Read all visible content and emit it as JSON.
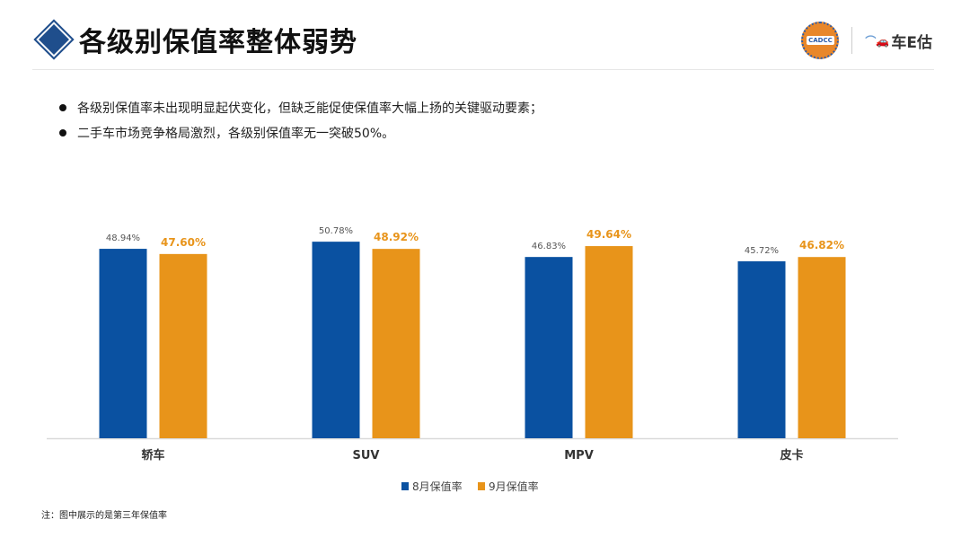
{
  "header": {
    "title": "各级别保值率整体弱势",
    "logo_left": "CADCC",
    "logo_right": "车E估"
  },
  "bullets": [
    "各级别保值率未出现明显起伏变化，但缺乏能促使保值率大幅上扬的关键驱动要素；",
    "二手车市场竞争格局激烈，各级别保值率无一突破50%。"
  ],
  "note": "注：图中展示的是第三年保值率",
  "chart_data": {
    "type": "bar",
    "categories": [
      "轿车",
      "SUV",
      "MPV",
      "皮卡"
    ],
    "series": [
      {
        "name": "8月保值率",
        "values": [
          48.94,
          50.78,
          46.83,
          45.72
        ],
        "labels": [
          "48.94%",
          "50.78%",
          "46.83%",
          "45.72%"
        ],
        "color": "#0a51a1"
      },
      {
        "name": "9月保值率",
        "values": [
          47.6,
          48.92,
          49.64,
          46.82
        ],
        "labels": [
          "47.60%",
          "48.92%",
          "49.64%",
          "46.82%"
        ],
        "color": "#e8941a"
      }
    ],
    "ylim": [
      0,
      60
    ],
    "grid": false,
    "legend": "bottom",
    "title": "",
    "xlabel": "",
    "ylabel": ""
  }
}
